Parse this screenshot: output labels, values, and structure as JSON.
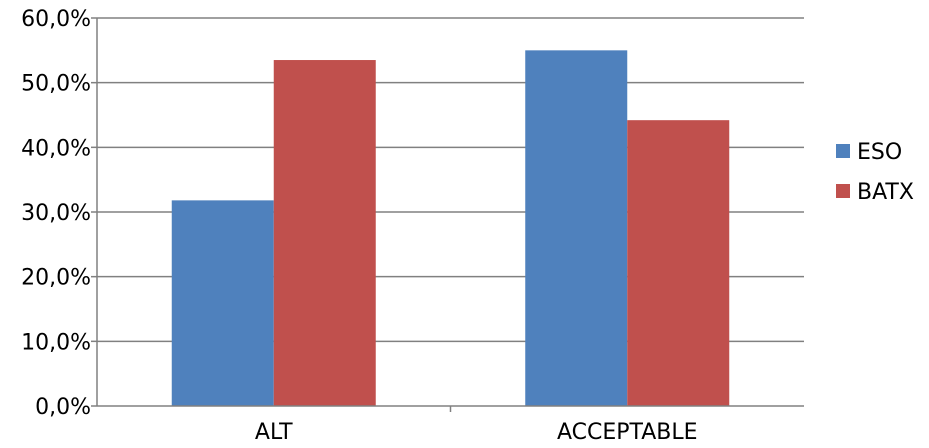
{
  "chart_data": {
    "type": "bar",
    "categories": [
      "ALT",
      "ACCEPTABLE"
    ],
    "series": [
      {
        "name": "ESO",
        "values": [
          31.8,
          55.0
        ],
        "color": "#4F81BD"
      },
      {
        "name": "BATX",
        "values": [
          53.5,
          44.2
        ],
        "color": "#C0504D"
      }
    ],
    "ylim": [
      0,
      60
    ],
    "yticks": [
      "0,0%",
      "10,0%",
      "20,0%",
      "30,0%",
      "40,0%",
      "50,0%",
      "60,0%"
    ],
    "grid": true,
    "legend_position": "right",
    "title": "",
    "xlabel": "",
    "ylabel": ""
  }
}
